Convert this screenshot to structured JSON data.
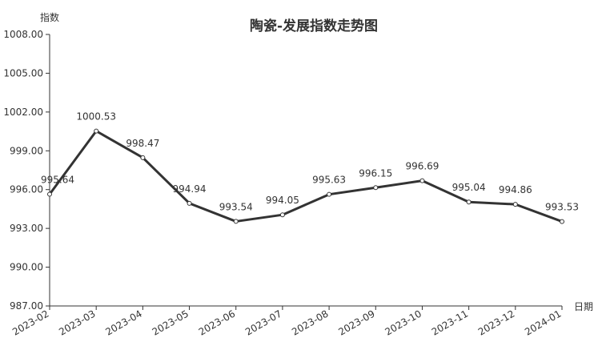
{
  "chart_data": {
    "type": "line",
    "title": "陶瓷-发展指数走势图",
    "xlabel": "日期",
    "ylabel": "指数",
    "categories": [
      "2023-02",
      "2023-03",
      "2023-04",
      "2023-05",
      "2023-06",
      "2023-07",
      "2023-08",
      "2023-09",
      "2023-10",
      "2023-11",
      "2023-12",
      "2024-01"
    ],
    "series": [
      {
        "values": [
          995.64,
          1000.53,
          998.47,
          994.94,
          993.54,
          994.05,
          995.63,
          996.15,
          996.69,
          995.04,
          994.86,
          993.53
        ]
      }
    ],
    "data_labels": [
      "995.64",
      "1000.53",
      "998.47",
      "994.94",
      "993.54",
      "994.05",
      "995.63",
      "996.15",
      "996.69",
      "995.04",
      "994.86",
      "993.53"
    ],
    "ylim": [
      987,
      1008
    ],
    "yticks": [
      987,
      990,
      993,
      996,
      999,
      1002,
      1005,
      1008
    ],
    "ytick_labels": [
      "987.00",
      "990.00",
      "993.00",
      "996.00",
      "999.00",
      "1002.00",
      "1005.00",
      "1008.00"
    ],
    "grid": false,
    "legend": "none",
    "colors": {
      "line": "#333333",
      "marker_fill": "#ffffff",
      "axis": "#333333",
      "text": "#333333"
    }
  }
}
